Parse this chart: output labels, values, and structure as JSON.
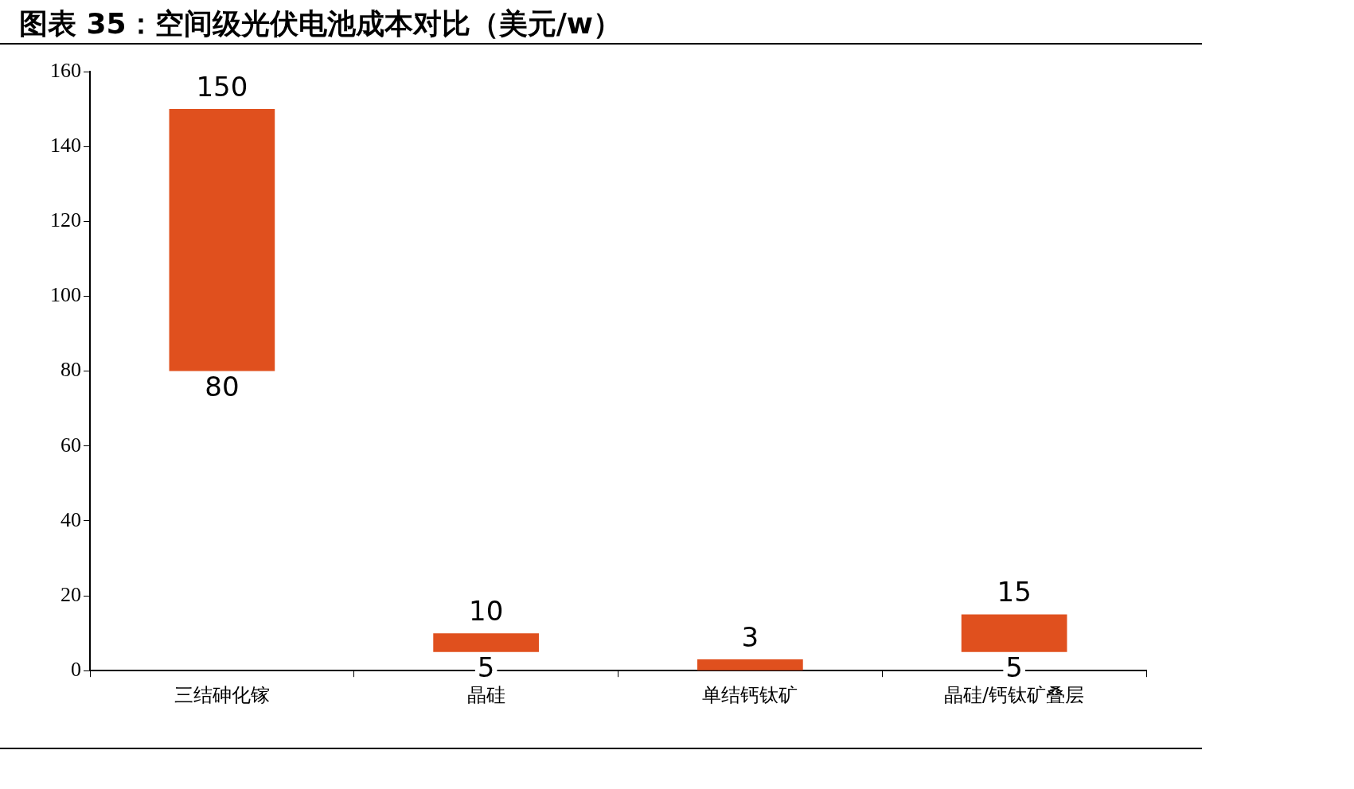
{
  "chart_data": {
    "type": "bar",
    "title": "图表 35：空间级光伏电池成本对比（美元/w）",
    "categories": [
      "三结砷化镓",
      "晶硅",
      "单结钙钛矿",
      "晶硅/钙钛矿叠层"
    ],
    "values": [
      70,
      5,
      3,
      10
    ],
    "base": [
      80,
      5,
      0,
      5
    ],
    "color": "#e0501e",
    "ylim": [
      0,
      160
    ],
    "yticks": [
      0,
      20,
      40,
      60,
      80,
      100,
      120,
      140,
      160
    ],
    "grid": false,
    "legend": false,
    "annotations": [
      {
        "text": "150",
        "x": "三结砷化镓",
        "y": 150
      },
      {
        "text": "80",
        "x": "三结砷化镓",
        "y": 80
      },
      {
        "text": "10",
        "x": "晶硅",
        "y": 10
      },
      {
        "text": "5",
        "x": "晶硅",
        "y": 5
      },
      {
        "text": "3",
        "x": "单结钙钛矿",
        "y": 3
      },
      {
        "text": "15",
        "x": "晶硅/钙钛矿叠层",
        "y": 15
      },
      {
        "text": "5",
        "x": "晶硅/钙钛矿叠层",
        "y": 5
      }
    ]
  }
}
